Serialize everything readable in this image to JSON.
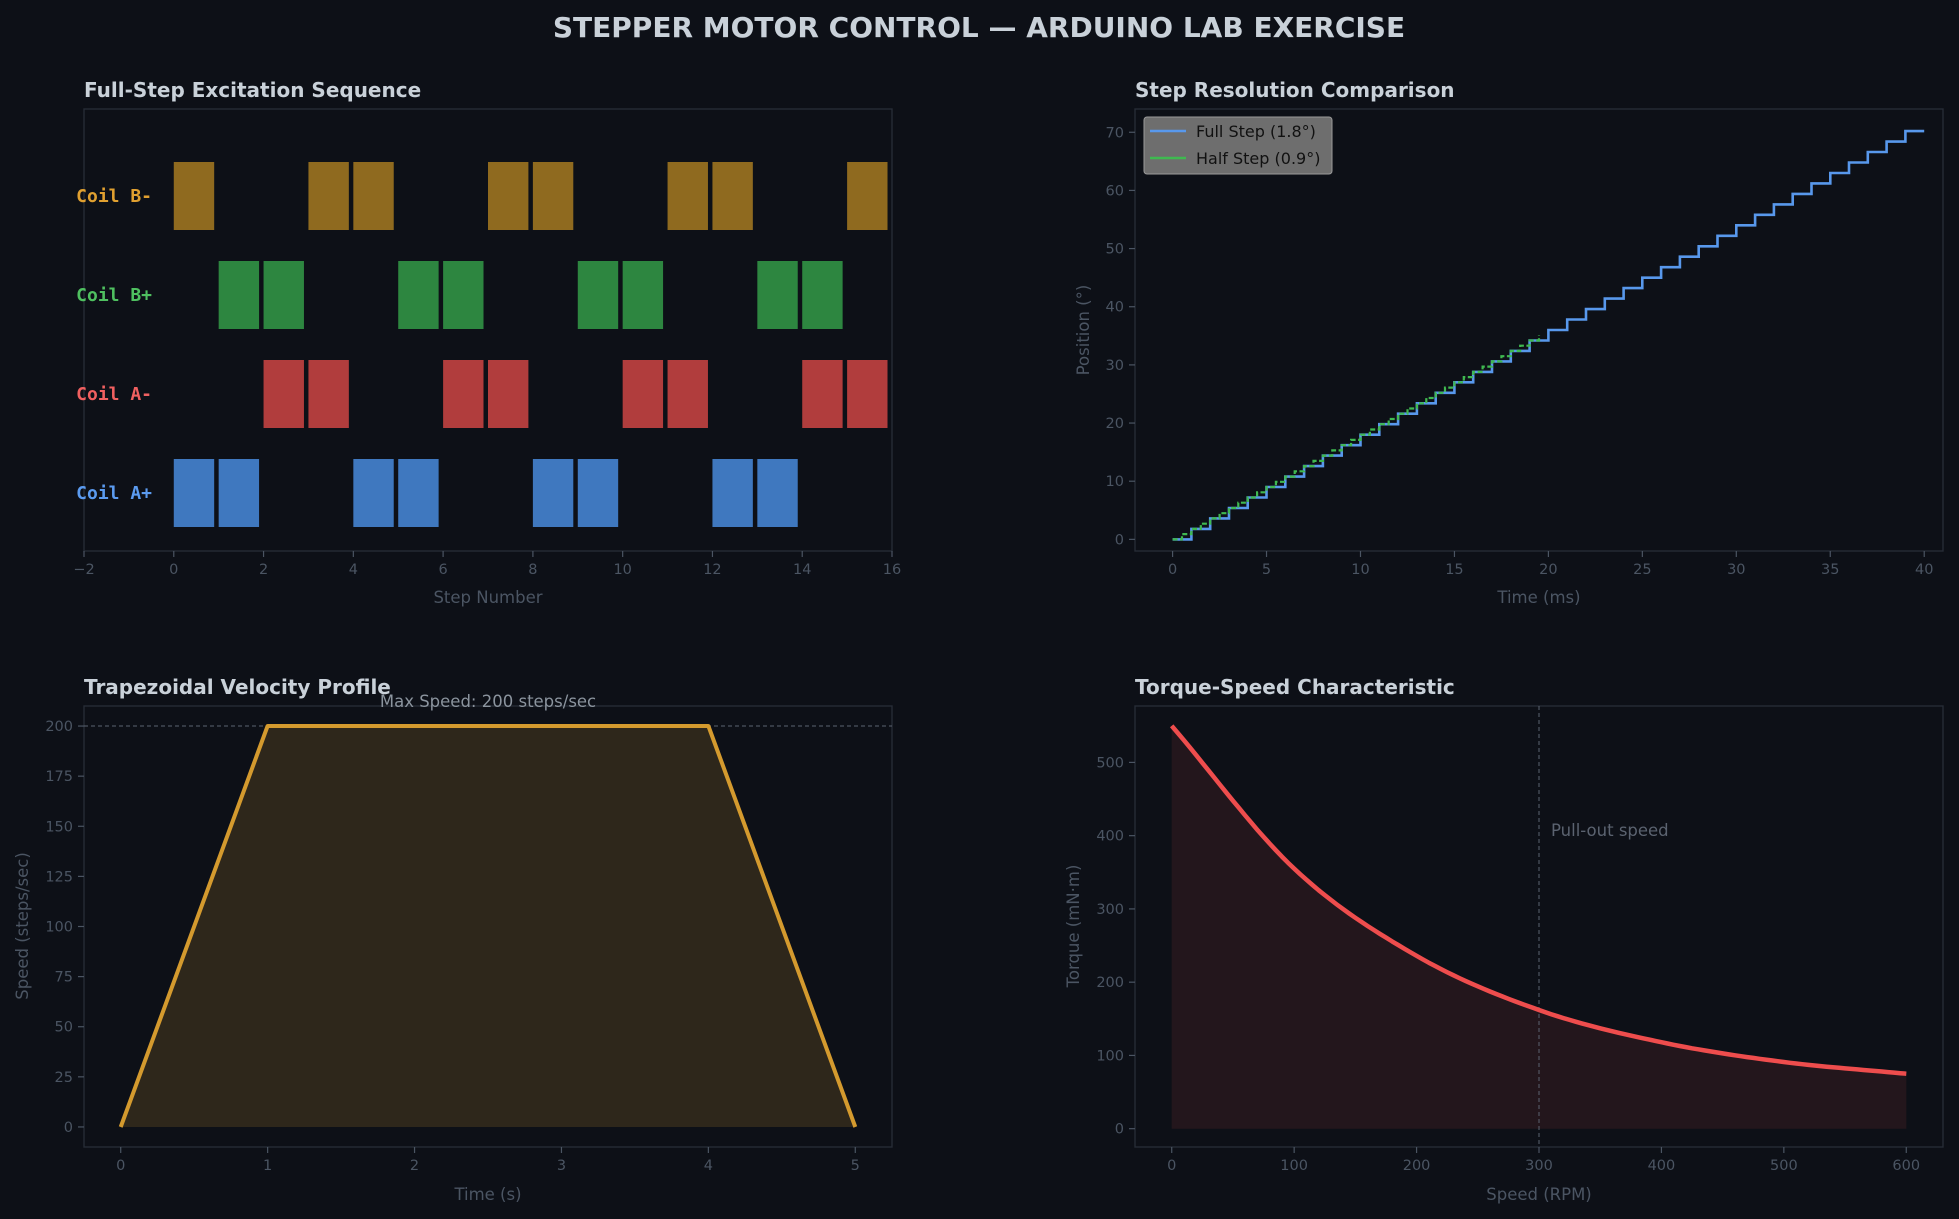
{
  "figure_title": "STEPPER MOTOR CONTROL — ARDUINO LAB EXERCISE",
  "colors": {
    "background": "#0d1017",
    "panel": "#0d1017",
    "coil_a_plus": "#3f78bf",
    "coil_a_minus": "#b13d3d",
    "coil_b_plus": "#2d8640",
    "coil_b_minus": "#8f6a1f",
    "full_step": "#5898ec",
    "half_step": "#3fb950",
    "velocity": "#d49a2e",
    "torque": "#ee4d4d"
  },
  "chart_data": [
    {
      "type": "bar",
      "subtype": "timing-diagram",
      "title": "Full-Step Excitation Sequence",
      "xlabel": "Step Number",
      "ylabel": "",
      "xlim": [
        -2,
        16
      ],
      "xticks": [
        -2,
        0,
        2,
        4,
        6,
        8,
        10,
        12,
        14,
        16
      ],
      "xtick_labels": [
        "−2",
        "0",
        "2",
        "4",
        "6",
        "8",
        "10",
        "12",
        "14",
        "16"
      ],
      "rows": [
        "Coil A+",
        "Coil A-",
        "Coil B+",
        "Coil B-"
      ],
      "series": [
        {
          "name": "Coil A+",
          "active_steps": [
            0,
            1,
            4,
            5,
            8,
            9,
            12,
            13
          ]
        },
        {
          "name": "Coil A-",
          "active_steps": [
            2,
            3,
            6,
            7,
            10,
            11,
            14,
            15
          ]
        },
        {
          "name": "Coil B+",
          "active_steps": [
            1,
            2,
            5,
            6,
            9,
            10,
            13,
            14
          ]
        },
        {
          "name": "Coil B-",
          "active_steps": [
            0,
            3,
            4,
            7,
            8,
            11,
            12,
            15
          ]
        }
      ]
    },
    {
      "type": "line",
      "subtype": "step",
      "title": "Step Resolution Comparison",
      "xlabel": "Time (ms)",
      "ylabel": "Position (°)",
      "xlim": [
        -2,
        41
      ],
      "ylim": [
        -2,
        74
      ],
      "xticks": [
        0,
        5,
        10,
        15,
        20,
        25,
        30,
        35,
        40
      ],
      "yticks": [
        0,
        10,
        20,
        30,
        40,
        50,
        60,
        70
      ],
      "legend": "upper-left",
      "series": [
        {
          "name": "Full Step (1.8°)",
          "step_time_ms": 1,
          "step_deg": 1.8,
          "t_end_ms": 40
        },
        {
          "name": "Half Step (0.9°)",
          "step_time_ms": 0.5,
          "step_deg": 0.9,
          "t_end_ms": 20
        }
      ]
    },
    {
      "type": "area",
      "title": "Trapezoidal Velocity Profile",
      "xlabel": "Time (s)",
      "ylabel": "Speed (steps/sec)",
      "xlim": [
        -0.25,
        5.25
      ],
      "ylim": [
        -10,
        210
      ],
      "xticks": [
        0,
        1,
        2,
        3,
        4,
        5
      ],
      "yticks": [
        0,
        25,
        50,
        75,
        100,
        125,
        150,
        175,
        200
      ],
      "x": [
        0,
        1,
        4,
        5
      ],
      "values": [
        0,
        200,
        200,
        0
      ],
      "reference_line": 200,
      "annotation": "Max Speed: 200 steps/sec"
    },
    {
      "type": "area",
      "title": "Torque-Speed Characteristic",
      "xlabel": "Speed (RPM)",
      "ylabel": "Torque (mN·m)",
      "xlim": [
        -30,
        630
      ],
      "ylim": [
        -25,
        577
      ],
      "xticks": [
        0,
        100,
        200,
        300,
        400,
        500,
        600
      ],
      "yticks": [
        0,
        100,
        200,
        300,
        400,
        500
      ],
      "x": [
        0,
        100,
        200,
        300,
        400,
        500,
        600
      ],
      "values": [
        550,
        355,
        236,
        162,
        118,
        91,
        75
      ],
      "reference_x": 300,
      "annotation": "Pull-out speed"
    }
  ]
}
